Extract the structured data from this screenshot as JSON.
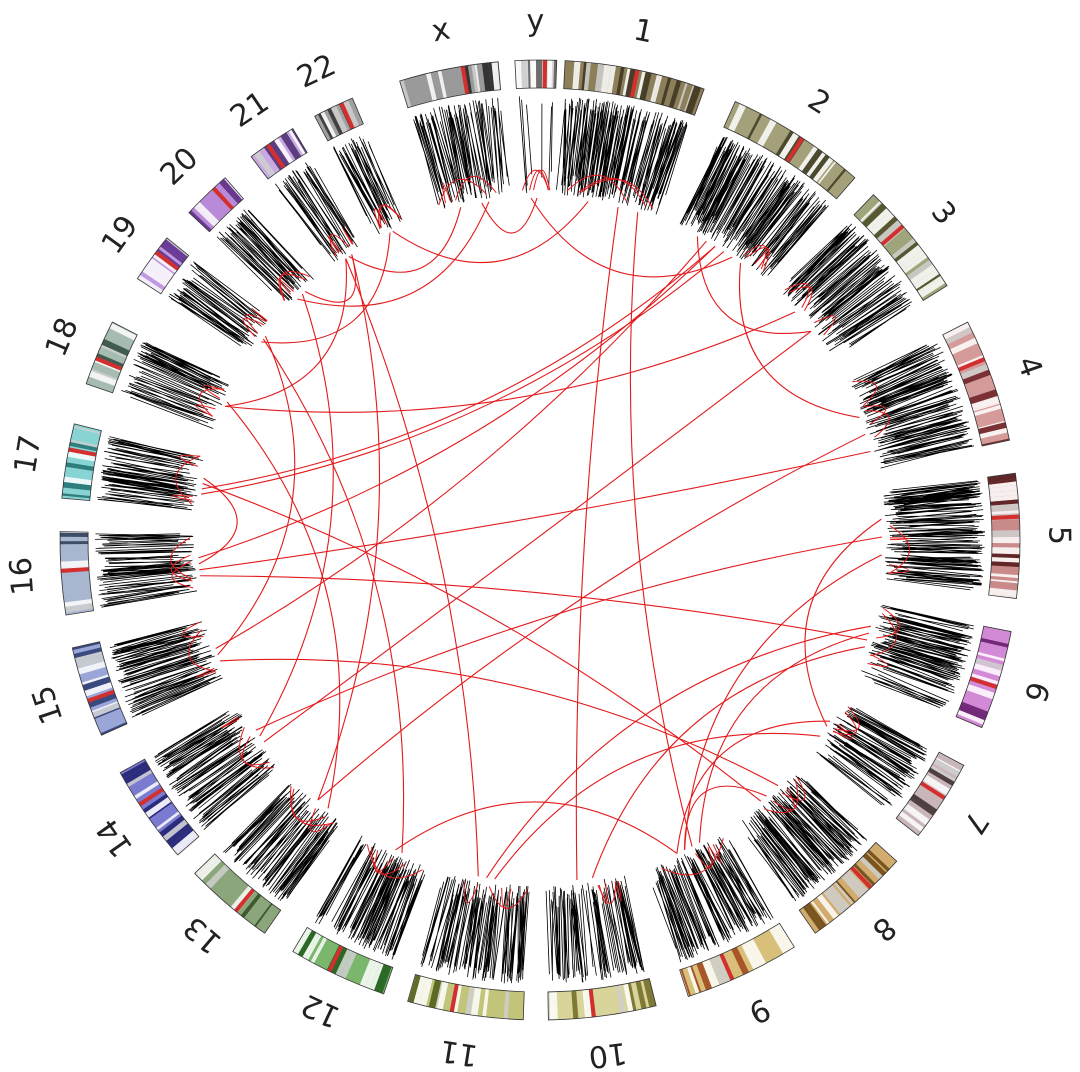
{
  "figure": {
    "type": "circos",
    "description_label": "Circos genome plot",
    "colors": {
      "link": "#e31a1c",
      "track_line": "#000000",
      "centromere": "#d32f2f",
      "background": "#ffffff"
    }
  },
  "chromosomes": [
    {
      "label": "1",
      "color": "#8d7f5a",
      "dark": "#3b3220",
      "density": 1.0
    },
    {
      "label": "2",
      "color": "#a4a07a",
      "dark": "#3e3a22",
      "density": 0.95
    },
    {
      "label": "3",
      "color": "#9fa47a",
      "dark": "#4a4a24",
      "density": 0.8
    },
    {
      "label": "4",
      "color": "#d59a9a",
      "dark": "#6b1f22",
      "density": 0.85
    },
    {
      "label": "5",
      "color": "#c98a8a",
      "dark": "#4d1416",
      "density": 1.0
    },
    {
      "label": "6",
      "color": "#d38ad6",
      "dark": "#611866",
      "density": 0.85
    },
    {
      "label": "7",
      "color": "#c9b6b9",
      "dark": "#3a2a2a",
      "density": 0.8
    },
    {
      "label": "8",
      "color": "#d2ac6e",
      "dark": "#6a4512",
      "density": 0.9
    },
    {
      "label": "9",
      "color": "#d8c07a",
      "dark": "#a0431a",
      "density": 0.8
    },
    {
      "label": "10",
      "color": "#d8d49a",
      "dark": "#6e6a24",
      "density": 0.75
    },
    {
      "label": "11",
      "color": "#c2c47a",
      "dark": "#4a5a16",
      "density": 0.8
    },
    {
      "label": "12",
      "color": "#7ab66c",
      "dark": "#1f5a1a",
      "density": 0.85
    },
    {
      "label": "13",
      "color": "#8aa67a",
      "dark": "#2f4a22",
      "density": 0.75
    },
    {
      "label": "14",
      "color": "#7a7ad0",
      "dark": "#1e1e6e",
      "density": 0.8
    },
    {
      "label": "15",
      "color": "#9aa6d8",
      "dark": "#2a3a6e",
      "density": 0.8
    },
    {
      "label": "16",
      "color": "#a8b6cf",
      "dark": "#2c3a52",
      "density": 0.75
    },
    {
      "label": "17",
      "color": "#88d4d4",
      "dark": "#1f6e6e",
      "density": 0.85
    },
    {
      "label": "18",
      "color": "#a6bcb0",
      "dark": "#2f4a40",
      "density": 0.7
    },
    {
      "label": "19",
      "color": "#c09ae0",
      "dark": "#5a2a8a",
      "density": 0.7
    },
    {
      "label": "20",
      "color": "#b88ad8",
      "dark": "#5a2a82",
      "density": 0.75
    },
    {
      "label": "21",
      "color": "#c8aae0",
      "dark": "#4a2a6e",
      "density": 0.6
    },
    {
      "label": "22",
      "color": "#a0a0a0",
      "dark": "#303030",
      "density": 0.7
    },
    {
      "label": "x",
      "color": "#9a9a9a",
      "dark": "#222222",
      "density": 0.7
    },
    {
      "label": "y",
      "color": "#d6d6d6",
      "dark": "#5a5a5a",
      "density": 0.15
    }
  ],
  "links": [
    [
      1,
      0.3,
      14,
      0.5
    ],
    [
      1,
      0.5,
      16,
      0.3
    ],
    [
      1,
      0.7,
      3,
      0.4
    ],
    [
      1,
      0.4,
      15,
      0.6
    ],
    [
      1,
      0.2,
      2,
      0.6
    ],
    [
      0,
      0.6,
      9,
      0.6
    ],
    [
      0,
      0.8,
      8,
      0.4
    ],
    [
      0,
      0.3,
      21,
      0.5
    ],
    [
      2,
      0.3,
      17,
      0.5
    ],
    [
      2,
      0.6,
      13,
      0.4
    ],
    [
      3,
      0.8,
      15,
      0.4
    ],
    [
      3,
      0.6,
      12,
      0.5
    ],
    [
      4,
      0.5,
      13,
      0.6
    ],
    [
      4,
      0.3,
      6,
      0.5
    ],
    [
      4,
      0.7,
      8,
      0.5
    ],
    [
      5,
      0.3,
      10,
      0.5
    ],
    [
      5,
      0.6,
      9,
      0.4
    ],
    [
      5,
      0.4,
      8,
      0.3
    ],
    [
      6,
      0.4,
      8,
      0.6
    ],
    [
      6,
      0.7,
      10,
      0.4
    ],
    [
      7,
      0.5,
      8,
      0.5
    ],
    [
      8,
      0.6,
      11,
      0.5
    ],
    [
      10,
      0.6,
      20,
      0.4
    ],
    [
      11,
      0.4,
      18,
      0.5
    ],
    [
      12,
      0.5,
      20,
      0.6
    ],
    [
      12,
      0.3,
      17,
      0.6
    ],
    [
      13,
      0.5,
      19,
      0.5
    ],
    [
      14,
      0.4,
      18,
      0.6
    ],
    [
      15,
      0.5,
      16,
      0.6
    ],
    [
      15,
      0.3,
      5,
      0.5
    ],
    [
      16,
      0.5,
      7,
      0.6
    ],
    [
      17,
      0.5,
      20,
      0.4
    ],
    [
      19,
      0.6,
      20,
      0.6
    ],
    [
      20,
      0.5,
      22,
      0.3
    ],
    [
      22,
      0.6,
      23,
      0.5
    ],
    [
      23,
      0.3,
      1,
      0.6
    ],
    [
      14,
      0.3,
      7,
      0.3
    ],
    [
      16,
      0.4,
      1,
      0.4
    ],
    [
      19,
      0.3,
      22,
      0.7
    ],
    [
      18,
      0.4,
      21,
      0.4
    ]
  ]
}
